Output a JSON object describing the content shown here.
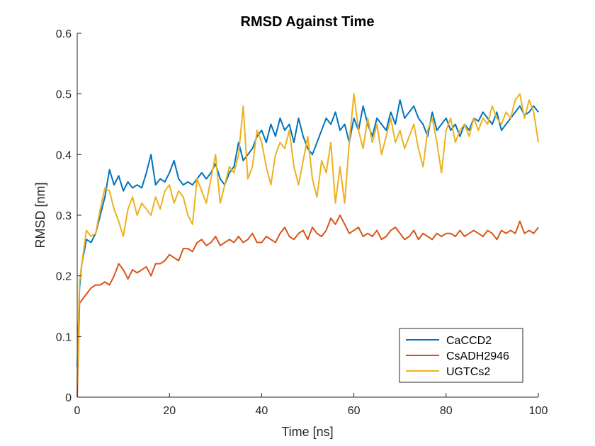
{
  "chart_data": {
    "type": "line",
    "title": "RMSD Against Time",
    "xlabel": "Time [ns]",
    "ylabel": "RMSD [nm]",
    "xlim": [
      0,
      100
    ],
    "ylim": [
      0,
      0.6
    ],
    "xticks": [
      0,
      20,
      40,
      60,
      80,
      100
    ],
    "yticks": [
      0,
      0.1,
      0.2,
      0.3,
      0.4,
      0.5,
      0.6
    ],
    "xtick_labels": [
      "0",
      "20",
      "40",
      "60",
      "80",
      "100"
    ],
    "ytick_labels": [
      "0",
      "0.1",
      "0.2",
      "0.3",
      "0.4",
      "0.5",
      "0.6"
    ],
    "grid": false,
    "legend_position": "bottom-right",
    "series": [
      {
        "name": "CaCCD2",
        "color": "#0072BD",
        "x": [
          0,
          0.5,
          1,
          2,
          3,
          4,
          5,
          6,
          7,
          8,
          9,
          10,
          11,
          12,
          13,
          14,
          15,
          16,
          17,
          18,
          19,
          20,
          21,
          22,
          23,
          24,
          25,
          26,
          27,
          28,
          29,
          30,
          31,
          32,
          33,
          34,
          35,
          36,
          37,
          38,
          39,
          40,
          41,
          42,
          43,
          44,
          45,
          46,
          47,
          48,
          49,
          50,
          51,
          52,
          53,
          54,
          55,
          56,
          57,
          58,
          59,
          60,
          61,
          62,
          63,
          64,
          65,
          66,
          67,
          68,
          69,
          70,
          71,
          72,
          73,
          74,
          75,
          76,
          77,
          78,
          79,
          80,
          81,
          82,
          83,
          84,
          85,
          86,
          87,
          88,
          89,
          90,
          91,
          92,
          93,
          94,
          95,
          96,
          97,
          98,
          99,
          100
        ],
        "y": [
          0.05,
          0.18,
          0.22,
          0.26,
          0.255,
          0.27,
          0.3,
          0.33,
          0.375,
          0.35,
          0.365,
          0.34,
          0.355,
          0.345,
          0.35,
          0.345,
          0.37,
          0.4,
          0.35,
          0.36,
          0.355,
          0.37,
          0.39,
          0.36,
          0.35,
          0.355,
          0.35,
          0.36,
          0.37,
          0.36,
          0.37,
          0.385,
          0.36,
          0.35,
          0.37,
          0.38,
          0.42,
          0.39,
          0.4,
          0.41,
          0.43,
          0.44,
          0.42,
          0.45,
          0.43,
          0.46,
          0.44,
          0.45,
          0.42,
          0.46,
          0.43,
          0.41,
          0.4,
          0.42,
          0.44,
          0.46,
          0.45,
          0.47,
          0.44,
          0.45,
          0.42,
          0.46,
          0.44,
          0.48,
          0.45,
          0.43,
          0.46,
          0.45,
          0.44,
          0.47,
          0.45,
          0.49,
          0.46,
          0.47,
          0.48,
          0.46,
          0.45,
          0.43,
          0.47,
          0.44,
          0.45,
          0.46,
          0.44,
          0.45,
          0.43,
          0.45,
          0.44,
          0.46,
          0.455,
          0.47,
          0.46,
          0.45,
          0.47,
          0.44,
          0.45,
          0.46,
          0.47,
          0.48,
          0.465,
          0.47,
          0.48,
          0.47
        ]
      },
      {
        "name": "CsADH2946",
        "color": "#D95319",
        "x": [
          0,
          0.5,
          1,
          2,
          3,
          4,
          5,
          6,
          7,
          8,
          9,
          10,
          11,
          12,
          13,
          14,
          15,
          16,
          17,
          18,
          19,
          20,
          21,
          22,
          23,
          24,
          25,
          26,
          27,
          28,
          29,
          30,
          31,
          32,
          33,
          34,
          35,
          36,
          37,
          38,
          39,
          40,
          41,
          42,
          43,
          44,
          45,
          46,
          47,
          48,
          49,
          50,
          51,
          52,
          53,
          54,
          55,
          56,
          57,
          58,
          59,
          60,
          61,
          62,
          63,
          64,
          65,
          66,
          67,
          68,
          69,
          70,
          71,
          72,
          73,
          74,
          75,
          76,
          77,
          78,
          79,
          80,
          81,
          82,
          83,
          84,
          85,
          86,
          87,
          88,
          89,
          90,
          91,
          92,
          93,
          94,
          95,
          96,
          97,
          98,
          99,
          100
        ],
        "y": [
          0.0,
          0.155,
          0.16,
          0.17,
          0.18,
          0.185,
          0.185,
          0.19,
          0.185,
          0.2,
          0.22,
          0.21,
          0.195,
          0.21,
          0.205,
          0.21,
          0.215,
          0.2,
          0.22,
          0.22,
          0.225,
          0.235,
          0.23,
          0.225,
          0.245,
          0.245,
          0.24,
          0.255,
          0.26,
          0.25,
          0.255,
          0.265,
          0.25,
          0.255,
          0.26,
          0.255,
          0.265,
          0.255,
          0.26,
          0.27,
          0.255,
          0.255,
          0.265,
          0.26,
          0.255,
          0.27,
          0.28,
          0.265,
          0.26,
          0.27,
          0.275,
          0.26,
          0.28,
          0.27,
          0.265,
          0.275,
          0.295,
          0.285,
          0.3,
          0.285,
          0.27,
          0.275,
          0.28,
          0.265,
          0.27,
          0.265,
          0.275,
          0.26,
          0.265,
          0.275,
          0.28,
          0.27,
          0.26,
          0.265,
          0.275,
          0.26,
          0.27,
          0.265,
          0.26,
          0.27,
          0.265,
          0.27,
          0.27,
          0.265,
          0.275,
          0.265,
          0.27,
          0.275,
          0.27,
          0.265,
          0.275,
          0.27,
          0.26,
          0.275,
          0.27,
          0.275,
          0.27,
          0.29,
          0.27,
          0.275,
          0.27,
          0.28
        ]
      },
      {
        "name": "UGTCs2",
        "color": "#EDB120",
        "x": [
          0,
          0.5,
          1,
          2,
          3,
          4,
          5,
          6,
          7,
          8,
          9,
          10,
          11,
          12,
          13,
          14,
          15,
          16,
          17,
          18,
          19,
          20,
          21,
          22,
          23,
          24,
          25,
          26,
          27,
          28,
          29,
          30,
          31,
          32,
          33,
          34,
          35,
          36,
          37,
          38,
          39,
          40,
          41,
          42,
          43,
          44,
          45,
          46,
          47,
          48,
          49,
          50,
          51,
          52,
          53,
          54,
          55,
          56,
          57,
          58,
          59,
          60,
          61,
          62,
          63,
          64,
          65,
          66,
          67,
          68,
          69,
          70,
          71,
          72,
          73,
          74,
          75,
          76,
          77,
          78,
          79,
          80,
          81,
          82,
          83,
          84,
          85,
          86,
          87,
          88,
          89,
          90,
          91,
          92,
          93,
          94,
          95,
          96,
          97,
          98,
          99,
          100
        ],
        "y": [
          0.02,
          0.19,
          0.22,
          0.275,
          0.265,
          0.27,
          0.31,
          0.345,
          0.34,
          0.31,
          0.29,
          0.265,
          0.31,
          0.33,
          0.3,
          0.32,
          0.31,
          0.3,
          0.33,
          0.31,
          0.34,
          0.35,
          0.32,
          0.34,
          0.33,
          0.3,
          0.285,
          0.36,
          0.34,
          0.32,
          0.36,
          0.4,
          0.32,
          0.35,
          0.38,
          0.37,
          0.4,
          0.48,
          0.36,
          0.38,
          0.44,
          0.42,
          0.38,
          0.35,
          0.4,
          0.42,
          0.41,
          0.44,
          0.38,
          0.35,
          0.39,
          0.43,
          0.36,
          0.33,
          0.39,
          0.37,
          0.42,
          0.32,
          0.38,
          0.32,
          0.42,
          0.5,
          0.44,
          0.41,
          0.46,
          0.42,
          0.45,
          0.4,
          0.43,
          0.46,
          0.42,
          0.44,
          0.41,
          0.43,
          0.45,
          0.41,
          0.38,
          0.44,
          0.46,
          0.42,
          0.37,
          0.44,
          0.46,
          0.42,
          0.44,
          0.45,
          0.43,
          0.46,
          0.44,
          0.46,
          0.45,
          0.48,
          0.46,
          0.45,
          0.47,
          0.46,
          0.49,
          0.5,
          0.46,
          0.49,
          0.47,
          0.42
        ]
      }
    ]
  }
}
